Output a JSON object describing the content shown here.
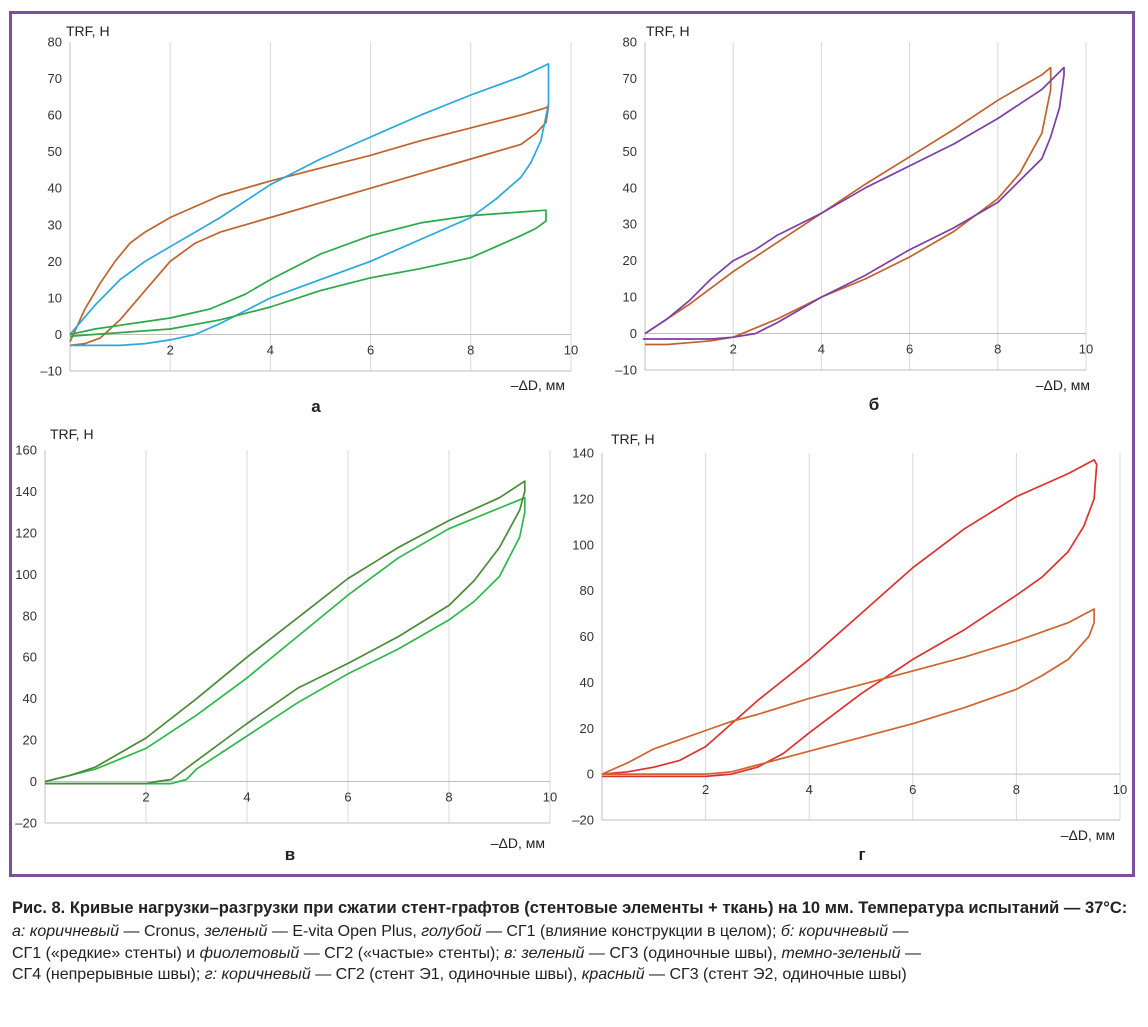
{
  "chart_data": [
    {
      "type": "line",
      "panel_label": "а",
      "ylabel": "TRF, Н",
      "xlabel": "–ΔD, мм",
      "xlim": [
        0,
        10
      ],
      "ylim": [
        -10,
        80
      ],
      "xticks": [
        2,
        4,
        6,
        8,
        10
      ],
      "yticks": [
        -10,
        0,
        10,
        20,
        30,
        40,
        50,
        60,
        70,
        80
      ],
      "grid": "vertical",
      "series": [
        {
          "color": "#c0622b",
          "x": [
            0,
            0.3,
            0.6,
            0.9,
            1.2,
            1.5,
            2,
            3,
            4,
            5,
            6,
            7,
            8,
            9,
            9.5,
            9.55,
            9.5,
            9.3,
            9,
            8,
            7,
            6,
            5,
            4,
            3,
            2.5,
            2,
            1.5,
            1,
            0.6,
            0.3,
            0
          ],
          "y": [
            -2,
            7,
            14,
            20,
            25,
            28,
            32,
            38,
            42,
            45.5,
            49,
            53,
            56.5,
            60,
            62,
            62.5,
            58,
            55,
            52,
            48,
            44,
            40,
            36,
            32,
            28,
            25,
            20,
            12,
            4,
            -1,
            -2.5,
            -3
          ]
        },
        {
          "color": "#29a8dd",
          "x": [
            0,
            0.5,
            1,
            1.5,
            2,
            3,
            4,
            5,
            6,
            7,
            8,
            9,
            9.55,
            9.55,
            9.4,
            9.2,
            9,
            8.5,
            8,
            7,
            6,
            5,
            4,
            3,
            2.5,
            2,
            1.5,
            1,
            0.5,
            0
          ],
          "y": [
            0,
            8,
            15,
            20,
            24,
            32,
            41,
            48,
            54,
            60,
            65.5,
            70.5,
            74,
            63,
            53,
            47,
            43,
            37,
            32,
            26,
            20,
            15,
            10,
            3,
            0,
            -1.5,
            -2.5,
            -3,
            -3,
            -3
          ]
        },
        {
          "color": "#2aa84a",
          "x": [
            0,
            0.5,
            1,
            2,
            2.8,
            3.5,
            4,
            5,
            6,
            7,
            8,
            9,
            9.5,
            9.5,
            9.3,
            9,
            8,
            7,
            6,
            5,
            4,
            3,
            2,
            1,
            0.5,
            0
          ],
          "y": [
            0,
            1.5,
            2.5,
            4.5,
            7,
            11,
            15,
            22,
            27,
            30.5,
            32.5,
            33.5,
            34,
            31,
            29,
            27,
            21,
            18,
            15.5,
            12,
            7.5,
            4,
            1.5,
            0.5,
            0,
            -0.5
          ]
        }
      ]
    },
    {
      "type": "line",
      "panel_label": "б",
      "ylabel": "TRF, Н",
      "xlabel": "–ΔD, мм",
      "xlim": [
        0,
        10
      ],
      "ylim": [
        -10,
        80
      ],
      "xticks": [
        2,
        4,
        6,
        8,
        10
      ],
      "yticks": [
        -10,
        0,
        10,
        20,
        30,
        40,
        50,
        60,
        70,
        80
      ],
      "grid": "vertical",
      "series": [
        {
          "color": "#c0622b",
          "x": [
            0,
            1,
            2,
            3,
            4,
            5,
            6,
            7,
            8,
            9,
            9.2,
            9.2,
            9,
            8.5,
            8,
            7,
            6,
            5,
            4,
            3,
            2,
            1.5,
            1,
            0.5,
            0
          ],
          "y": [
            0,
            8,
            17,
            25,
            33,
            41,
            48.5,
            56,
            64,
            71,
            73,
            67,
            55,
            44,
            37,
            28,
            21,
            15,
            10,
            4,
            -1,
            -2,
            -2.5,
            -3,
            -3
          ]
        },
        {
          "color": "#7b3fa6",
          "x": [
            0,
            0.5,
            1,
            1.5,
            2,
            2.5,
            3,
            4,
            5,
            6,
            7,
            8,
            9,
            9.5,
            9.5,
            9.4,
            9.2,
            9,
            8.5,
            8,
            7,
            6,
            5,
            4,
            3,
            2.5,
            2,
            1.5,
            1,
            0,
            -0.05
          ],
          "y": [
            0,
            4,
            9,
            15,
            20,
            23,
            27,
            33,
            40,
            46,
            52,
            59,
            67,
            73,
            71,
            62,
            54,
            48,
            42,
            36,
            29,
            23,
            16,
            10,
            3,
            0,
            -1,
            -1.5,
            -1.5,
            -1.5,
            -1.5
          ]
        }
      ]
    },
    {
      "type": "line",
      "panel_label": "в",
      "ylabel": "TRF,  Н",
      "xlabel": "–ΔD, мм",
      "xlim": [
        0,
        10
      ],
      "ylim": [
        -20,
        160
      ],
      "xticks": [
        2,
        4,
        6,
        8,
        10
      ],
      "yticks": [
        -20,
        0,
        20,
        40,
        60,
        80,
        100,
        120,
        140,
        160
      ],
      "grid": "vertical",
      "series": [
        {
          "color": "#2db84b",
          "x": [
            0,
            0.5,
            1,
            2,
            3,
            4,
            5,
            6,
            7,
            8,
            9,
            9.5,
            9.5,
            9.4,
            9,
            8.5,
            8,
            7,
            6,
            5,
            4,
            3,
            2.8,
            2.5,
            2,
            1,
            0
          ],
          "y": [
            0,
            3,
            6,
            16,
            32,
            50,
            70,
            90,
            108,
            122,
            132,
            137,
            130,
            118,
            99,
            87,
            78,
            64,
            52,
            38,
            22,
            6,
            1,
            -1,
            -1,
            -1,
            -1
          ]
        },
        {
          "color": "#4c8a39",
          "x": [
            0,
            0.5,
            1,
            2,
            3,
            4,
            5,
            6,
            7,
            8,
            9,
            9.5,
            9.5,
            9.4,
            9.2,
            9,
            8.5,
            8,
            7,
            6,
            5,
            4,
            3,
            2.5,
            2.2,
            2,
            1,
            0
          ],
          "y": [
            0,
            3,
            7,
            21,
            40,
            60,
            79,
            98,
            113,
            126,
            137,
            145,
            140,
            131,
            122,
            113,
            97,
            85,
            70,
            57,
            45,
            28,
            10,
            1,
            0,
            -1,
            -1,
            -1
          ]
        }
      ]
    },
    {
      "type": "line",
      "panel_label": "г",
      "ylabel": "TRF, Н",
      "xlabel": "–ΔD, мм",
      "xlim": [
        0,
        10
      ],
      "ylim": [
        -20,
        140
      ],
      "xticks": [
        2,
        4,
        6,
        8,
        10
      ],
      "yticks": [
        -20,
        0,
        20,
        40,
        60,
        80,
        100,
        120,
        140
      ],
      "grid": "vertical",
      "series": [
        {
          "color": "#e03030",
          "x": [
            0,
            0.5,
            1,
            1.5,
            2,
            2.5,
            3,
            4,
            5,
            6,
            7,
            8,
            9,
            9.5,
            9.55,
            9.5,
            9.3,
            9,
            8.5,
            8,
            7,
            6,
            5,
            4,
            3.5,
            3,
            2.5,
            2,
            1,
            0
          ],
          "y": [
            0,
            1,
            3,
            6,
            12,
            22,
            32,
            50,
            70,
            90,
            107,
            121,
            131,
            137,
            135,
            120,
            108,
            97,
            86,
            78,
            63,
            50,
            35,
            18,
            9,
            3,
            0,
            -1,
            -1,
            -1
          ]
        },
        {
          "color": "#d0642c",
          "x": [
            0,
            0.5,
            1,
            1.5,
            2,
            2.5,
            3,
            4,
            5,
            6,
            7,
            8,
            9,
            9.5,
            9.5,
            9.4,
            9,
            8.5,
            8,
            7,
            6,
            5,
            4,
            3,
            2.5,
            2,
            1,
            0
          ],
          "y": [
            0,
            5,
            11,
            15,
            19,
            23,
            26,
            33,
            39,
            45,
            51,
            58,
            66,
            72,
            66,
            60,
            50,
            43,
            37,
            29,
            22,
            16,
            10,
            4,
            1,
            0,
            0,
            0
          ]
        }
      ]
    }
  ],
  "caption": {
    "title": "Рис. 8. Кривые нагрузки–разгрузки при сжатии стент-графтов (стентовые элементы + ткань) на 10 мм. Температура испытаний — 37°С:",
    "line1": [
      {
        "t": "а: коричневый",
        "i": true
      },
      {
        "t": " — Cronus, ",
        "i": false
      },
      {
        "t": "зеленый",
        "i": true
      },
      {
        "t": " — E-vita Open Plus, ",
        "i": false
      },
      {
        "t": "голубой",
        "i": true
      },
      {
        "t": " — СГ1 (влияние конструкции в целом); ",
        "i": false
      },
      {
        "t": "б: коричневый",
        "i": true
      },
      {
        "t": " —",
        "i": false
      }
    ],
    "line2": [
      {
        "t": "СГ1 («редкие» стенты) и ",
        "i": false
      },
      {
        "t": "фиолетовый",
        "i": true
      },
      {
        "t": " — СГ2 («частые» стенты); ",
        "i": false
      },
      {
        "t": "в: зеленый",
        "i": true
      },
      {
        "t": " — СГ3 (одиночные швы), ",
        "i": false
      },
      {
        "t": "темно-зеленый",
        "i": true
      },
      {
        "t": " —",
        "i": false
      }
    ],
    "line3": [
      {
        "t": "СГ4 (непрерывные швы); ",
        "i": false
      },
      {
        "t": "г: коричневый",
        "i": true
      },
      {
        "t": " — СГ2 (стент Э1, одиночные швы), ",
        "i": false
      },
      {
        "t": "красный",
        "i": true
      },
      {
        "t": " — СГ3 (стент Э2, одиночные швы)",
        "i": false
      }
    ]
  }
}
